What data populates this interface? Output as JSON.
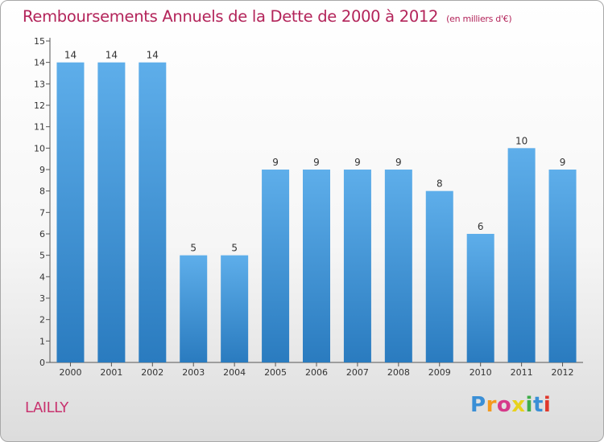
{
  "chart_data": {
    "type": "bar",
    "title": "Remboursements Annuels de la Dette de 2000 à 2012",
    "subtitle": "(en milliers d'€)",
    "categories": [
      "2000",
      "2001",
      "2002",
      "2003",
      "2004",
      "2005",
      "2006",
      "2007",
      "2008",
      "2009",
      "2010",
      "2011",
      "2012"
    ],
    "values": [
      14,
      14,
      14,
      5,
      5,
      9,
      9,
      9,
      9,
      8,
      6,
      10,
      9
    ],
    "ylim": [
      0,
      15
    ],
    "yticks": [
      0,
      1,
      2,
      3,
      4,
      5,
      6,
      7,
      8,
      9,
      10,
      11,
      12,
      13,
      14,
      15
    ],
    "grid": false,
    "data_labels": true,
    "bar_color_top": "#5eaeea",
    "bar_color_bottom": "#2a7bbf"
  },
  "footer": {
    "commune": "LAILLY",
    "logo_text": "Proxiti",
    "logo_colors": [
      "#3a8fd6",
      "#f39a1e",
      "#d63a8a",
      "#e8d21c",
      "#3fae49",
      "#3a8fd6",
      "#e0382c"
    ]
  }
}
